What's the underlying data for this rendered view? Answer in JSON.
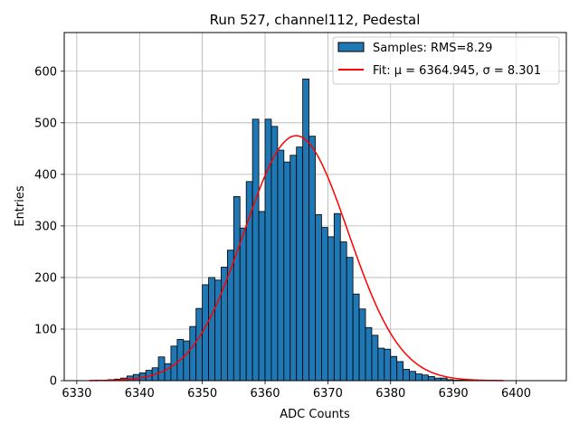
{
  "chart_data": {
    "type": "bar",
    "title": "Run 527, channel112, Pedestal",
    "xlabel": "ADC Counts",
    "ylabel": "Entries",
    "xlim": [
      6328,
      6408
    ],
    "ylim": [
      0,
      675
    ],
    "xticks": [
      6330,
      6340,
      6350,
      6360,
      6370,
      6380,
      6390,
      6400
    ],
    "yticks": [
      0,
      100,
      200,
      300,
      400,
      500,
      600
    ],
    "grid": true,
    "legend_position": "top-right",
    "histogram": {
      "name": "Samples: RMS=8.29",
      "color": "#1f77b4",
      "edgecolor": "#000000",
      "bin_width": 1,
      "bin_start": 6333,
      "counts": [
        1,
        1,
        2,
        3,
        5,
        9,
        12,
        15,
        20,
        25,
        46,
        33,
        67,
        80,
        77,
        105,
        140,
        186,
        200,
        195,
        220,
        253,
        357,
        296,
        386,
        507,
        328,
        507,
        493,
        447,
        424,
        437,
        453,
        585,
        474,
        322,
        297,
        279,
        324,
        269,
        239,
        168,
        139,
        103,
        88,
        63,
        61,
        47,
        37,
        22,
        18,
        13,
        11,
        8,
        5,
        5,
        2,
        1,
        1
      ]
    },
    "fit": {
      "name": "Fit: μ = 6364.945, σ = 8.301",
      "color": "#ff0000",
      "mu": 6364.945,
      "sigma": 8.301,
      "amplitude": 475,
      "x_range": [
        6332,
        6398
      ]
    }
  }
}
